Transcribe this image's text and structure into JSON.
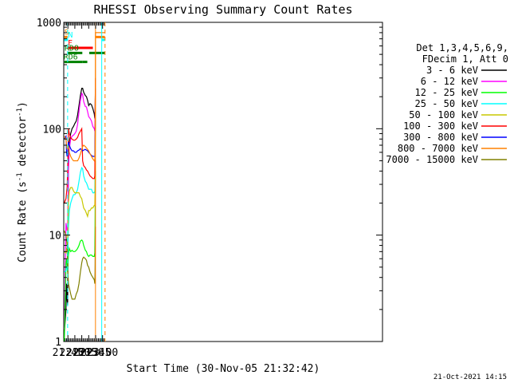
{
  "chart_data": {
    "type": "line",
    "title": "RHESSI Observing Summary Count Rates",
    "xlabel": "Start Time (30-Nov-05 21:32:42)",
    "ylabel_main": "Count Rate (s",
    "ylabel_sup1": "-1",
    "ylabel_mid": " detector",
    "ylabel_sup2": "-1",
    "ylabel_end": ")",
    "y_scale": "log",
    "ylim": [
      1,
      1000
    ],
    "xlim_minutes": [
      21.6,
      33.1
    ],
    "x_ticks": [
      {
        "label": "21:45",
        "min": 21.75
      },
      {
        "label": "22:00",
        "min": 22.0
      },
      {
        "label": "22:15",
        "min": 22.25
      },
      {
        "label": "22:30",
        "min": 22.5
      },
      {
        "label": "22:45",
        "min": 22.75
      },
      {
        "label": "23:00",
        "min": 23.0
      }
    ],
    "y_ticks": [
      {
        "label": "1",
        "value": 1
      },
      {
        "label": "10",
        "value": 10
      },
      {
        "label": "100",
        "value": 100
      },
      {
        "label": "1000",
        "value": 1000
      }
    ],
    "legend_header": [
      "Det 1,3,4,5,6,9,",
      "FDecim 1, Att 0"
    ],
    "series": [
      {
        "name": "3 - 6 keV",
        "color": "#000000",
        "points": [
          [
            21.62,
            1.2
          ],
          [
            21.68,
            2.0
          ],
          [
            21.7,
            3.5
          ],
          [
            21.72,
            2.5
          ],
          [
            21.74,
            2.2
          ],
          [
            21.77,
            55
          ],
          [
            21.8,
            75
          ],
          [
            21.85,
            90
          ],
          [
            21.9,
            100
          ],
          [
            21.95,
            105
          ],
          [
            22.0,
            112
          ],
          [
            22.05,
            118
          ],
          [
            22.1,
            135
          ],
          [
            22.15,
            165
          ],
          [
            22.2,
            205
          ],
          [
            22.25,
            240
          ],
          [
            22.28,
            240
          ],
          [
            22.32,
            220
          ],
          [
            22.38,
            205
          ],
          [
            22.42,
            200
          ],
          [
            22.46,
            185
          ],
          [
            22.5,
            165
          ],
          [
            22.55,
            172
          ],
          [
            22.6,
            168
          ],
          [
            22.65,
            155
          ],
          [
            22.7,
            138
          ],
          [
            22.72,
            125
          ],
          [
            22.73,
            140
          ],
          [
            22.74,
            240
          ]
        ]
      },
      {
        "name": "6 - 12 keV",
        "color": "#ff00ff",
        "points": [
          [
            21.62,
            1.3
          ],
          [
            21.68,
            13
          ],
          [
            21.7,
            12
          ],
          [
            21.72,
            11
          ],
          [
            21.74,
            12
          ],
          [
            21.77,
            40
          ],
          [
            21.8,
            65
          ],
          [
            21.85,
            80
          ],
          [
            21.9,
            85
          ],
          [
            21.95,
            87
          ],
          [
            22.0,
            90
          ],
          [
            22.05,
            95
          ],
          [
            22.1,
            110
          ],
          [
            22.15,
            145
          ],
          [
            22.2,
            185
          ],
          [
            22.25,
            215
          ],
          [
            22.28,
            210
          ],
          [
            22.32,
            180
          ],
          [
            22.38,
            162
          ],
          [
            22.42,
            160
          ],
          [
            22.46,
            145
          ],
          [
            22.5,
            130
          ],
          [
            22.55,
            125
          ],
          [
            22.6,
            118
          ],
          [
            22.65,
            105
          ],
          [
            22.7,
            100
          ],
          [
            22.72,
            95
          ],
          [
            22.73,
            115
          ],
          [
            22.74,
            230
          ]
        ]
      },
      {
        "name": "12 - 25 keV",
        "color": "#00ff00",
        "points": [
          [
            21.62,
            1.0
          ],
          [
            21.68,
            5.5
          ],
          [
            21.7,
            6.0
          ],
          [
            21.72,
            5.0
          ],
          [
            21.74,
            4.5
          ],
          [
            21.77,
            6.5
          ],
          [
            21.8,
            7.5
          ],
          [
            21.85,
            7.0
          ],
          [
            21.9,
            7.2
          ],
          [
            21.95,
            7.0
          ],
          [
            22.0,
            7.0
          ],
          [
            22.05,
            7.2
          ],
          [
            22.1,
            7.5
          ],
          [
            22.15,
            8.0
          ],
          [
            22.2,
            8.8
          ],
          [
            22.25,
            9.0
          ],
          [
            22.28,
            8.8
          ],
          [
            22.32,
            8.0
          ],
          [
            22.38,
            7.2
          ],
          [
            22.42,
            7.0
          ],
          [
            22.46,
            6.5
          ],
          [
            22.5,
            6.3
          ],
          [
            22.55,
            6.5
          ],
          [
            22.6,
            6.5
          ],
          [
            22.65,
            6.3
          ],
          [
            22.7,
            6.3
          ],
          [
            22.72,
            6.8
          ],
          [
            22.73,
            12
          ],
          [
            22.74,
            40
          ]
        ]
      },
      {
        "name": "25 - 50 keV",
        "color": "#00ffff",
        "points": [
          [
            21.62,
            4.5
          ],
          [
            21.68,
            4.6
          ],
          [
            21.7,
            5.0
          ],
          [
            21.72,
            5.0
          ],
          [
            21.74,
            6.0
          ],
          [
            21.77,
            12
          ],
          [
            21.8,
            17
          ],
          [
            21.85,
            20
          ],
          [
            21.9,
            22
          ],
          [
            21.95,
            24
          ],
          [
            22.0,
            24
          ],
          [
            22.05,
            25
          ],
          [
            22.1,
            27
          ],
          [
            22.15,
            32
          ],
          [
            22.2,
            39
          ],
          [
            22.25,
            43
          ],
          [
            22.28,
            42
          ],
          [
            22.32,
            36
          ],
          [
            22.38,
            32
          ],
          [
            22.42,
            31
          ],
          [
            22.46,
            29
          ],
          [
            22.5,
            27
          ],
          [
            22.55,
            27
          ],
          [
            22.6,
            27
          ],
          [
            22.65,
            25
          ],
          [
            22.7,
            25
          ],
          [
            22.72,
            26
          ],
          [
            22.73,
            40
          ],
          [
            22.74,
            150
          ]
        ]
      },
      {
        "name": "50 - 100 keV",
        "color": "#c8c800",
        "points": [
          [
            21.62,
            7.0
          ],
          [
            21.68,
            6.8
          ],
          [
            21.7,
            7.5
          ],
          [
            21.72,
            7.5
          ],
          [
            21.74,
            9.0
          ],
          [
            21.77,
            20
          ],
          [
            21.8,
            26
          ],
          [
            21.85,
            28
          ],
          [
            21.9,
            28
          ],
          [
            21.95,
            26
          ],
          [
            22.0,
            25
          ],
          [
            22.05,
            25
          ],
          [
            22.1,
            25
          ],
          [
            22.15,
            25
          ],
          [
            22.2,
            23
          ],
          [
            22.25,
            22
          ],
          [
            22.28,
            20
          ],
          [
            22.32,
            18
          ],
          [
            22.38,
            17
          ],
          [
            22.42,
            16
          ],
          [
            22.46,
            15
          ],
          [
            22.5,
            17
          ],
          [
            22.55,
            17
          ],
          [
            22.6,
            18
          ],
          [
            22.65,
            18
          ],
          [
            22.7,
            19
          ],
          [
            22.72,
            19
          ],
          [
            22.73,
            25
          ],
          [
            22.74,
            50
          ]
        ]
      },
      {
        "name": "100 - 300 keV",
        "color": "#ff0000",
        "points": [
          [
            21.62,
            20
          ],
          [
            21.68,
            22
          ],
          [
            21.7,
            25
          ],
          [
            21.72,
            28
          ],
          [
            21.74,
            40
          ],
          [
            21.77,
            100
          ],
          [
            21.8,
            90
          ],
          [
            21.85,
            82
          ],
          [
            21.9,
            80
          ],
          [
            21.95,
            78
          ],
          [
            22.0,
            78
          ],
          [
            22.05,
            80
          ],
          [
            22.1,
            83
          ],
          [
            22.15,
            90
          ],
          [
            22.2,
            95
          ],
          [
            22.25,
            100
          ],
          [
            22.28,
            50
          ],
          [
            22.32,
            45
          ],
          [
            22.38,
            43
          ],
          [
            22.42,
            41
          ],
          [
            22.46,
            40
          ],
          [
            22.5,
            38
          ],
          [
            22.55,
            36
          ],
          [
            22.6,
            35
          ],
          [
            22.65,
            34
          ],
          [
            22.7,
            34
          ],
          [
            22.72,
            36
          ],
          [
            22.73,
            80
          ],
          [
            22.74,
            300
          ]
        ]
      },
      {
        "name": "300 - 800 keV",
        "color": "#0000ff",
        "points": [
          [
            21.62,
            80
          ],
          [
            21.68,
            85
          ],
          [
            21.7,
            60
          ],
          [
            21.72,
            55
          ],
          [
            21.74,
            60
          ],
          [
            21.77,
            75
          ],
          [
            21.8,
            70
          ],
          [
            21.85,
            65
          ],
          [
            21.9,
            62
          ],
          [
            21.95,
            62
          ],
          [
            22.0,
            60
          ],
          [
            22.05,
            60
          ],
          [
            22.1,
            62
          ],
          [
            22.15,
            63
          ],
          [
            22.2,
            65
          ],
          [
            22.25,
            63
          ],
          [
            22.28,
            62
          ],
          [
            22.32,
            63
          ],
          [
            22.38,
            64
          ],
          [
            22.42,
            63
          ],
          [
            22.46,
            62
          ],
          [
            22.5,
            60
          ],
          [
            22.55,
            58
          ],
          [
            22.6,
            56
          ],
          [
            22.65,
            55
          ],
          [
            22.7,
            55
          ],
          [
            22.72,
            55
          ],
          [
            22.73,
            70
          ],
          [
            22.74,
            120
          ]
        ]
      },
      {
        "name": "800 - 7000 keV",
        "color": "#ff8000",
        "points": [
          [
            21.62,
            85
          ],
          [
            21.68,
            80
          ],
          [
            21.7,
            70
          ],
          [
            21.72,
            65
          ],
          [
            21.74,
            65
          ],
          [
            21.77,
            68
          ],
          [
            21.8,
            60
          ],
          [
            21.85,
            55
          ],
          [
            21.9,
            52
          ],
          [
            21.95,
            50
          ],
          [
            22.0,
            50
          ],
          [
            22.05,
            50
          ],
          [
            22.1,
            50
          ],
          [
            22.15,
            53
          ],
          [
            22.2,
            58
          ],
          [
            22.25,
            64
          ],
          [
            22.28,
            68
          ],
          [
            22.32,
            70
          ],
          [
            22.38,
            68
          ],
          [
            22.42,
            66
          ],
          [
            22.46,
            64
          ],
          [
            22.5,
            62
          ],
          [
            22.55,
            58
          ],
          [
            22.6,
            55
          ],
          [
            22.65,
            52
          ],
          [
            22.7,
            50
          ],
          [
            22.72,
            52
          ],
          [
            22.73,
            60
          ],
          [
            22.74,
            100
          ],
          [
            22.745,
            800
          ],
          [
            22.76,
            800
          ],
          [
            23.05,
            800
          ],
          [
            23.08,
            800
          ]
        ]
      },
      {
        "name": "7000 - 15000 keV",
        "color": "#808000",
        "points": [
          [
            21.62,
            11
          ],
          [
            21.68,
            10
          ],
          [
            21.7,
            9
          ],
          [
            21.72,
            8
          ],
          [
            21.74,
            5
          ],
          [
            21.77,
            3.5
          ],
          [
            21.8,
            3.2
          ],
          [
            21.85,
            2.8
          ],
          [
            21.9,
            2.5
          ],
          [
            21.95,
            2.5
          ],
          [
            22.0,
            2.5
          ],
          [
            22.05,
            2.8
          ],
          [
            22.1,
            3.0
          ],
          [
            22.15,
            3.5
          ],
          [
            22.2,
            4.5
          ],
          [
            22.25,
            5.5
          ],
          [
            22.28,
            6.0
          ],
          [
            22.32,
            6.2
          ],
          [
            22.38,
            6.0
          ],
          [
            22.42,
            5.8
          ],
          [
            22.46,
            5.2
          ],
          [
            22.5,
            5.0
          ],
          [
            22.55,
            4.5
          ],
          [
            22.6,
            4.2
          ],
          [
            22.65,
            4.0
          ],
          [
            22.7,
            3.8
          ],
          [
            22.72,
            3.5
          ],
          [
            22.73,
            4.5
          ],
          [
            22.74,
            12
          ]
        ]
      }
    ],
    "flag_bars": [
      {
        "label": "S",
        "color": "#ff8000",
        "y_frac": 0.954,
        "label_min": 21.62,
        "segments": [
          [
            21.62,
            21.74
          ],
          [
            22.76,
            23.08
          ]
        ]
      },
      {
        "label": "N",
        "color": "#00ffff",
        "y_frac": 0.945,
        "label_min": 21.755,
        "segments": [
          [
            21.62,
            21.74
          ],
          [
            22.97,
            23.08
          ]
        ]
      },
      {
        "label": "F",
        "color": "#ff0000",
        "y_frac": 0.92,
        "label_min": 21.745,
        "segments": [
          [
            21.76,
            22.65
          ]
        ]
      },
      {
        "label": "RDO",
        "color": "#008000",
        "y_frac": 0.904,
        "label_min": 21.625,
        "segments": [
          [
            21.73,
            22.27
          ],
          [
            22.52,
            23.08
          ]
        ]
      },
      {
        "label": "RD6",
        "color": "#008000",
        "y_frac": 0.876,
        "label_min": 21.59,
        "segments": [
          [
            21.62,
            22.27
          ],
          [
            22.27,
            22.45
          ]
        ]
      }
    ],
    "vertical_lines": [
      {
        "min": 21.74,
        "color": "#00ffff",
        "style": "dashed"
      },
      {
        "min": 22.745,
        "color": "#ff8000",
        "style": "solid"
      },
      {
        "min": 22.97,
        "color": "#00ffff",
        "style": "solid"
      },
      {
        "min": 23.09,
        "color": "#ff8000",
        "style": "dashed"
      }
    ],
    "footer_date": "21-Oct-2021 14:15"
  }
}
